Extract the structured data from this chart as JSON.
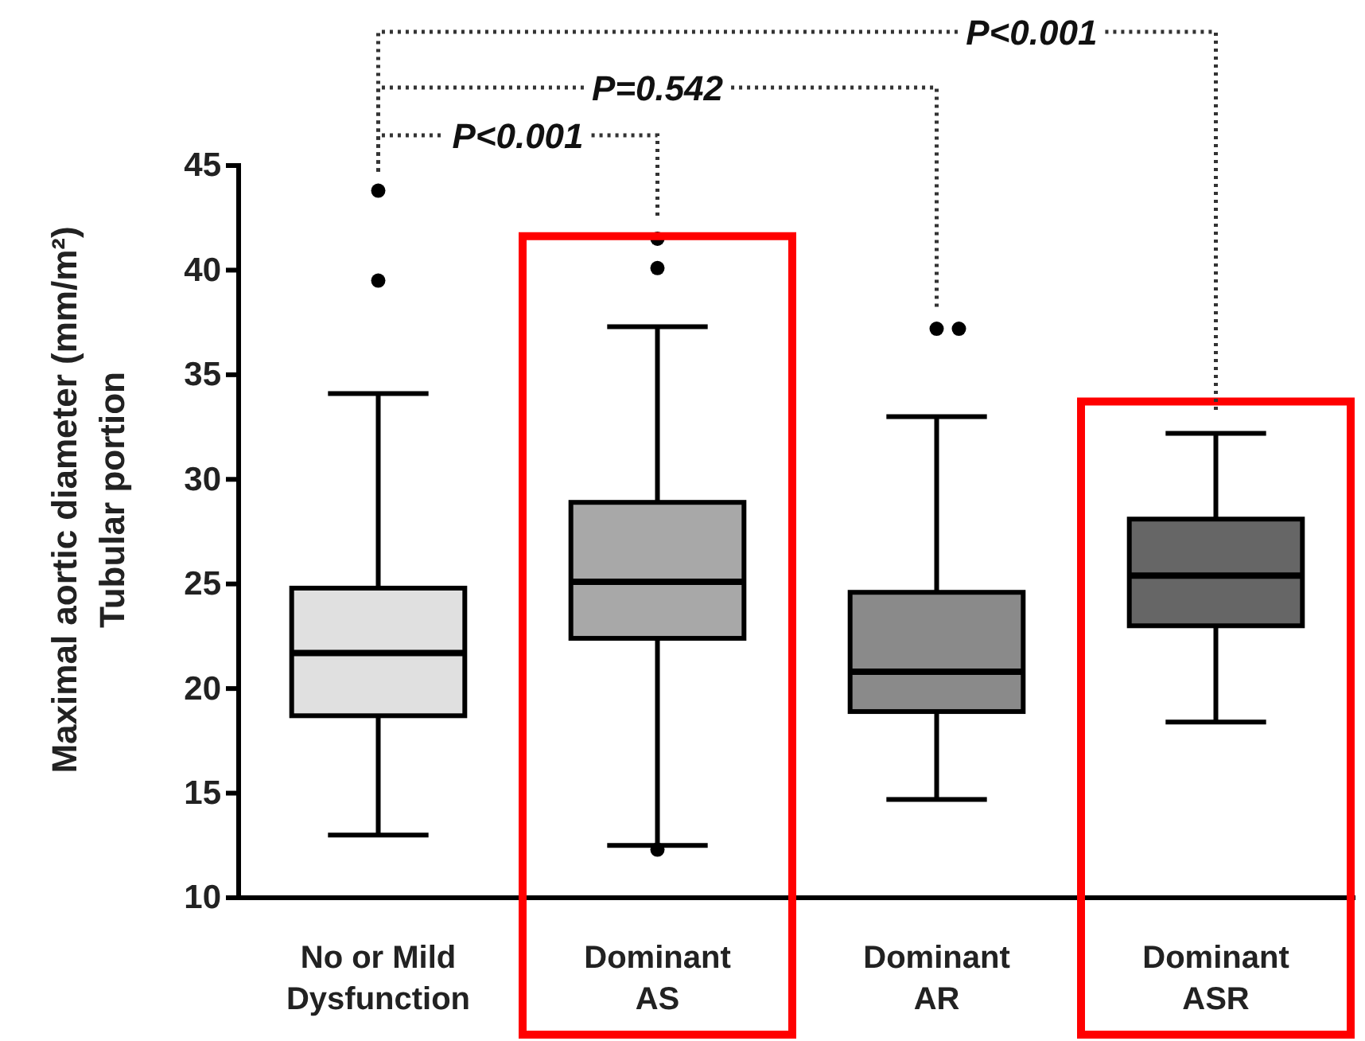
{
  "chart_data": {
    "type": "box",
    "ylabel": "Maximal aortic diameter (mm/m²)\nTubular portion",
    "categories": [
      "No or Mild\nDysfunction",
      "Dominant\nAS",
      "Dominant\nAR",
      "Dominant\nASR"
    ],
    "boxes": [
      {
        "low": 13.0,
        "q1": 18.7,
        "median": 21.7,
        "q3": 24.8,
        "high": 34.1,
        "outliers": [
          39.5,
          43.8
        ]
      },
      {
        "low": 12.5,
        "q1": 22.4,
        "median": 25.1,
        "q3": 28.9,
        "high": 37.3,
        "outliers": [
          12.3,
          40.1,
          41.5
        ]
      },
      {
        "low": 14.7,
        "q1": 18.9,
        "median": 20.8,
        "q3": 24.6,
        "high": 33.0,
        "outliers": [
          37.2,
          37.2
        ]
      },
      {
        "low": 18.4,
        "q1": 23.0,
        "median": 25.4,
        "q3": 28.1,
        "high": 32.2
      }
    ],
    "colors": [
      "#e0e0e0",
      "#a8a8a8",
      "#8a8a8a",
      "#666666"
    ],
    "ylim": [
      10,
      45
    ],
    "yticks": [
      10,
      15,
      20,
      25,
      30,
      35,
      40,
      45
    ],
    "bands": [
      {
        "axis": "x",
        "from": "Dominant\nAS",
        "to": "Dominant\nAS",
        "color": "#ff0000"
      },
      {
        "axis": "x",
        "from": "Dominant\nASR",
        "to": "Dominant\nASR",
        "color": "#ff0000"
      }
    ],
    "annotations": [
      "P<0.001",
      "P=0.542",
      "P<0.001"
    ]
  }
}
